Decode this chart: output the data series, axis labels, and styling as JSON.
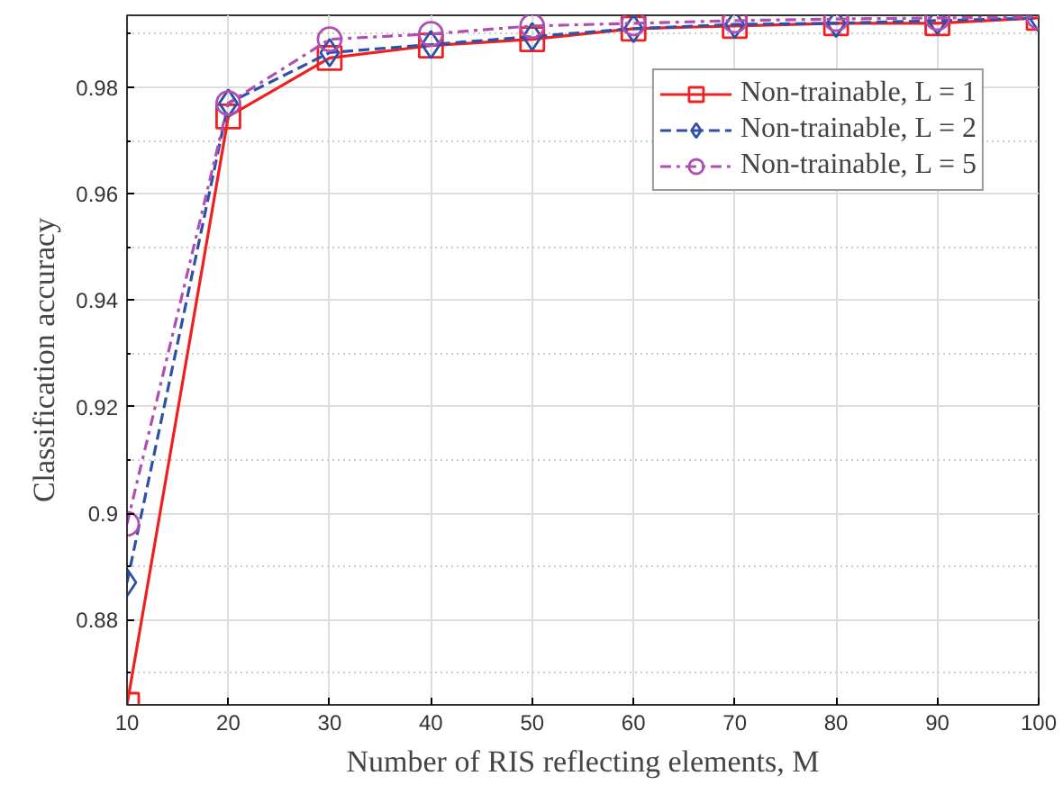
{
  "chart_data": {
    "type": "line",
    "xlabel": "Number of RIS reflecting elements, M",
    "ylabel": "Classification accuracy",
    "x": [
      10,
      20,
      30,
      40,
      50,
      60,
      70,
      80,
      90,
      100
    ],
    "series": [
      {
        "name": "Non-trainable, L = 1",
        "color": "#ee2020",
        "marker": "square",
        "line_style": "solid",
        "values": [
          0.864,
          0.9745,
          0.9855,
          0.9878,
          0.989,
          0.991,
          0.9915,
          0.992,
          0.992,
          0.993
        ]
      },
      {
        "name": "Non-trainable, L = 2",
        "color": "#2f4fa8",
        "marker": "diamond",
        "line_style": "dashed",
        "values": [
          0.887,
          0.977,
          0.9865,
          0.988,
          0.9895,
          0.991,
          0.9918,
          0.992,
          0.9925,
          0.993
        ]
      },
      {
        "name": "Non-trainable, L = 5",
        "color": "#b04fb0",
        "marker": "circle",
        "line_style": "dashdot",
        "values": [
          0.898,
          0.977,
          0.989,
          0.99,
          0.9915,
          0.992,
          0.9925,
          0.9928,
          0.993,
          0.9932
        ]
      }
    ],
    "xlim": [
      10,
      100
    ],
    "ylim": [
      0.864,
      0.9935
    ],
    "xticks": [
      10,
      20,
      30,
      40,
      50,
      60,
      70,
      80,
      90,
      100
    ],
    "yticks": [
      0.88,
      0.9,
      0.92,
      0.94,
      0.96,
      0.98
    ],
    "grid": true,
    "legend": "top right"
  }
}
